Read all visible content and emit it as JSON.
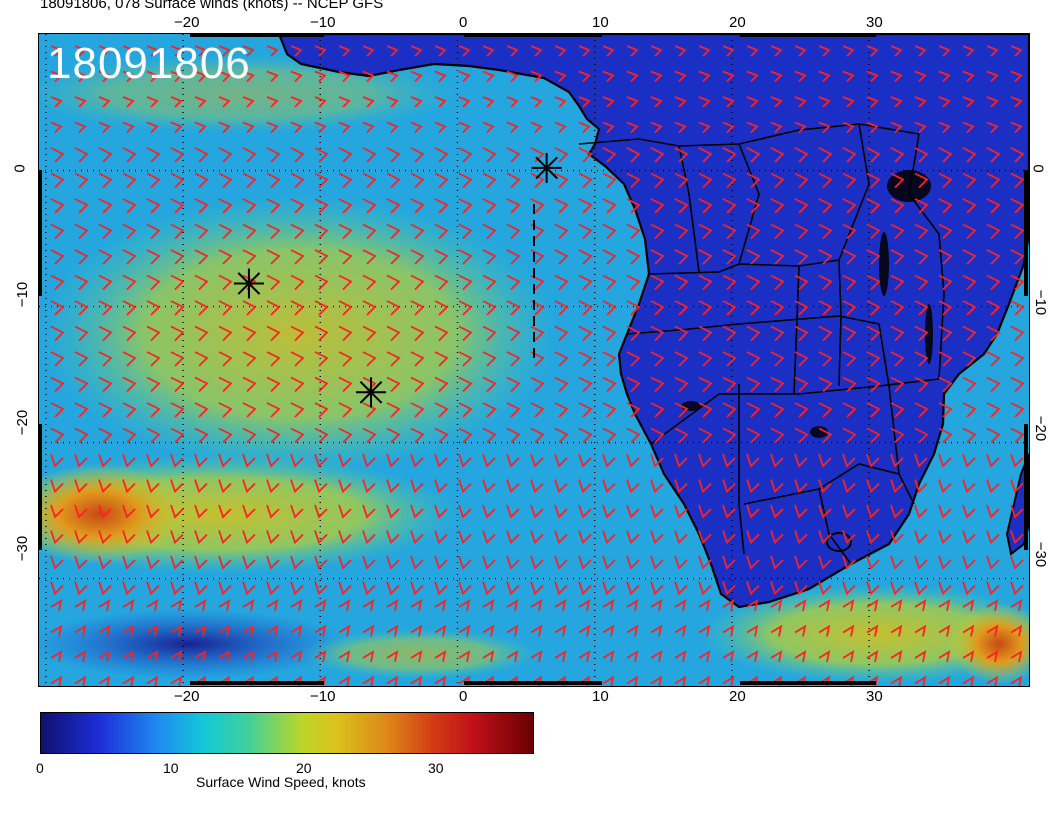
{
  "title": "18091806, 078 Surface winds (knots) -- NCEP GFS",
  "timestamp_overlay": "18091806",
  "lon_ticks_top": [
    "−20",
    "−10",
    "0",
    "10",
    "20",
    "30"
  ],
  "lon_ticks_bottom": [
    "−20",
    "−10",
    "0",
    "10",
    "20",
    "30"
  ],
  "lat_ticks_left": [
    "0",
    "−10",
    "−20",
    "−30"
  ],
  "lat_ticks_right": [
    "0",
    "−10",
    "−20",
    "−30"
  ],
  "colorbar": {
    "label": "Surface Wind Speed, knots",
    "ticks": [
      "0",
      "10",
      "20",
      "30"
    ],
    "min": 0,
    "max": 37
  },
  "markers": [
    {
      "name": "asterisk-1",
      "lon": -15.2,
      "lat": -8.3
    },
    {
      "name": "asterisk-2",
      "lon": -6.3,
      "lat": -16.3
    },
    {
      "name": "asterisk-3",
      "lon": 6.5,
      "lat": 0.2
    }
  ],
  "colors": {
    "barb": "#ff2020",
    "coast": "#000000",
    "land_base": "#1a2cc8",
    "ocean_base": "#2aa8e0"
  }
}
